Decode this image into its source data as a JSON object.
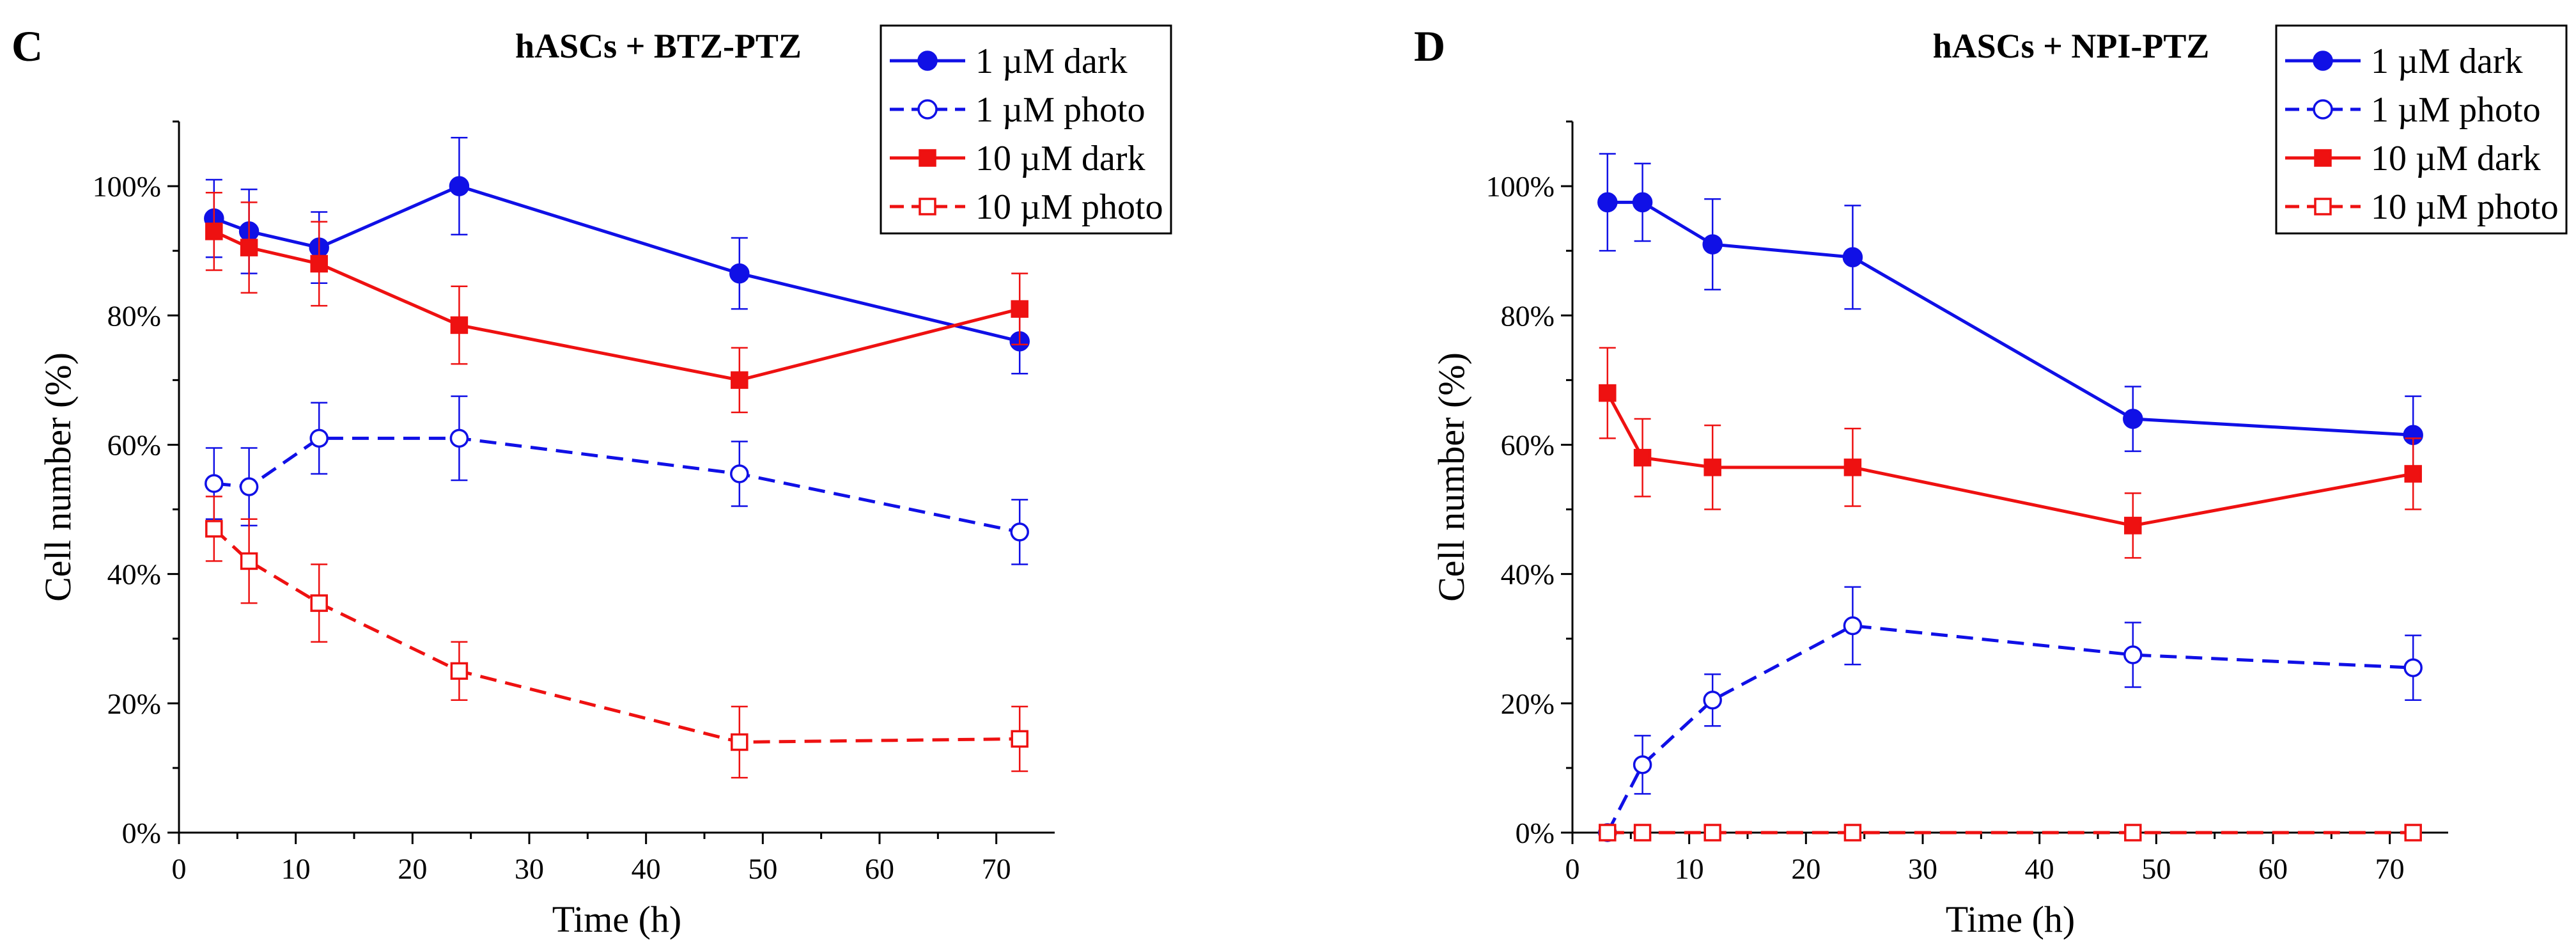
{
  "colors": {
    "blue": "#1010e6",
    "red": "#ee1111",
    "axis": "#000000",
    "background": "#ffffff"
  },
  "chart_data": [
    {
      "panel": "C",
      "type": "line",
      "title": "hASCs + BTZ-PTZ",
      "xlabel": "Time (h)",
      "ylabel": "Cell number (%)",
      "xlim": [
        0,
        75
      ],
      "ylim": [
        0,
        110
      ],
      "xticks": [
        0,
        10,
        20,
        30,
        40,
        50,
        60,
        70
      ],
      "yticks": [
        0,
        20,
        40,
        60,
        80,
        100
      ],
      "ytick_labels": [
        "0%",
        "20%",
        "40%",
        "60%",
        "80%",
        "100%"
      ],
      "legend": "top-right",
      "series": [
        {
          "name": "1 µM dark",
          "color": "blue",
          "style": "solid",
          "marker": "circle",
          "filled": true,
          "x": [
            3,
            6,
            12,
            24,
            48,
            72
          ],
          "y": [
            95,
            93,
            90.5,
            100,
            86.5,
            76
          ],
          "err": [
            6,
            6.5,
            5.5,
            7.5,
            5.5,
            5
          ]
        },
        {
          "name": "1 µM photo",
          "color": "blue",
          "style": "dashed",
          "marker": "circle",
          "filled": false,
          "x": [
            3,
            6,
            12,
            24,
            48,
            72
          ],
          "y": [
            54,
            53.5,
            61,
            61,
            55.5,
            46.5
          ],
          "err": [
            5.5,
            6,
            5.5,
            6.5,
            5,
            5
          ]
        },
        {
          "name": "10 µM dark",
          "color": "red",
          "style": "solid",
          "marker": "square",
          "filled": true,
          "x": [
            3,
            6,
            12,
            24,
            48,
            72
          ],
          "y": [
            93,
            90.5,
            88,
            78.5,
            70,
            81
          ],
          "err": [
            6,
            7,
            6.5,
            6,
            5,
            5.5
          ]
        },
        {
          "name": "10 µM photo",
          "color": "red",
          "style": "dashed",
          "marker": "square",
          "filled": false,
          "x": [
            3,
            6,
            12,
            24,
            48,
            72
          ],
          "y": [
            47,
            42,
            35.5,
            25,
            14,
            14.5
          ],
          "err": [
            5,
            6.5,
            6,
            4.5,
            5.5,
            5
          ]
        }
      ]
    },
    {
      "panel": "D",
      "type": "line",
      "title": "hASCs + NPI-PTZ",
      "xlabel": "Time (h)",
      "ylabel": "Cell number (%)",
      "xlim": [
        0,
        75
      ],
      "ylim": [
        0,
        110
      ],
      "xticks": [
        0,
        10,
        20,
        30,
        40,
        50,
        60,
        70
      ],
      "yticks": [
        0,
        20,
        40,
        60,
        80,
        100
      ],
      "ytick_labels": [
        "0%",
        "20%",
        "40%",
        "60%",
        "80%",
        "100%"
      ],
      "legend": "top-right",
      "series": [
        {
          "name": "1 µM dark",
          "color": "blue",
          "style": "solid",
          "marker": "circle",
          "filled": true,
          "x": [
            3,
            6,
            12,
            24,
            48,
            72
          ],
          "y": [
            97.5,
            97.5,
            91,
            89,
            64,
            61.5
          ],
          "err": [
            7.5,
            6,
            7,
            8,
            5,
            6
          ]
        },
        {
          "name": "1 µM photo",
          "color": "blue",
          "style": "dashed",
          "marker": "circle",
          "filled": false,
          "x": [
            3,
            6,
            12,
            24,
            48,
            72
          ],
          "y": [
            0,
            10.5,
            20.5,
            32,
            27.5,
            25.5
          ],
          "err": [
            0,
            4.5,
            4,
            6,
            5,
            5
          ]
        },
        {
          "name": "10 µM dark",
          "color": "red",
          "style": "solid",
          "marker": "square",
          "filled": true,
          "x": [
            3,
            6,
            12,
            24,
            48,
            72
          ],
          "y": [
            68,
            58,
            56.5,
            56.5,
            47.5,
            55.5
          ],
          "err": [
            7,
            6,
            6.5,
            6,
            5,
            5.5
          ]
        },
        {
          "name": "10 µM photo",
          "color": "red",
          "style": "dashed",
          "marker": "square",
          "filled": false,
          "x": [
            3,
            6,
            12,
            24,
            48,
            72
          ],
          "y": [
            0,
            0,
            0,
            0,
            0,
            0
          ],
          "err": [
            0,
            0,
            0,
            0,
            0,
            0
          ]
        }
      ]
    }
  ]
}
